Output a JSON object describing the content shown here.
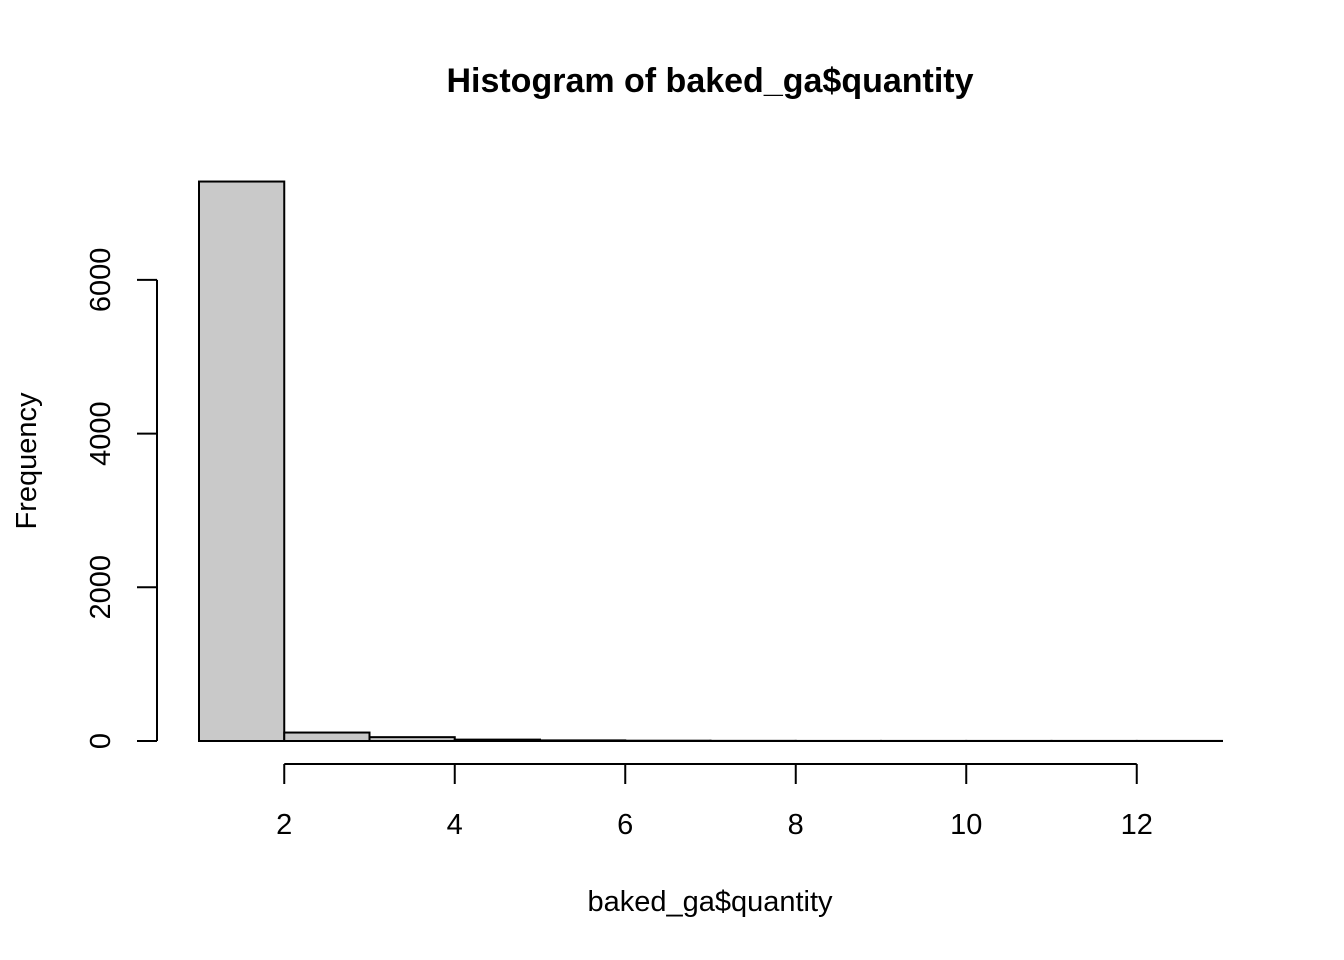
{
  "chart_data": {
    "type": "bar",
    "title": "Histogram of baked_ga$quantity",
    "xlabel": "baked_ga$quantity",
    "ylabel": "Frequency",
    "xlim": [
      1,
      13
    ],
    "ylim": [
      0,
      7300
    ],
    "x_ticks": [
      2,
      4,
      6,
      8,
      10,
      12
    ],
    "y_ticks": [
      0,
      2000,
      4000,
      6000
    ],
    "bins": [
      {
        "from": 1,
        "to": 2,
        "count": 7280
      },
      {
        "from": 2,
        "to": 3,
        "count": 110
      },
      {
        "from": 3,
        "to": 4,
        "count": 50
      },
      {
        "from": 4,
        "to": 5,
        "count": 18
      },
      {
        "from": 5,
        "to": 6,
        "count": 8
      },
      {
        "from": 6,
        "to": 7,
        "count": 4
      },
      {
        "from": 7,
        "to": 8,
        "count": 2
      },
      {
        "from": 8,
        "to": 9,
        "count": 1
      },
      {
        "from": 9,
        "to": 10,
        "count": 1
      },
      {
        "from": 10,
        "to": 11,
        "count": 1
      },
      {
        "from": 11,
        "to": 12,
        "count": 1
      },
      {
        "from": 12,
        "to": 13,
        "count": 1
      }
    ],
    "grid": false,
    "legend": "none",
    "colors": {
      "bar_fill": "#c9c9c9",
      "bar_stroke": "#000000"
    }
  }
}
